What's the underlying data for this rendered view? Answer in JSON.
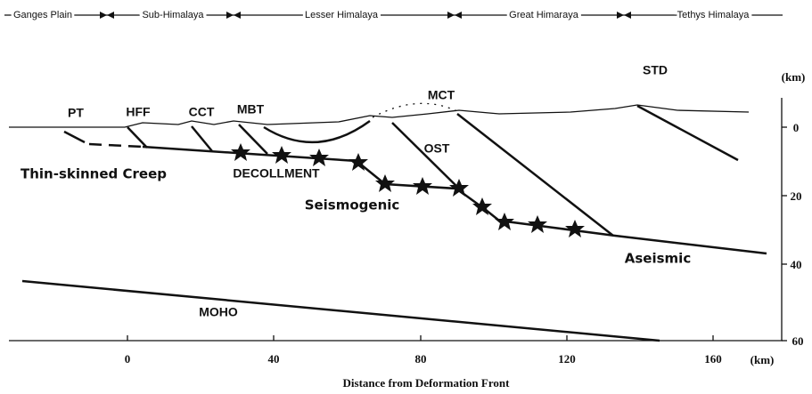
{
  "header": {
    "zones": [
      "Ganges Plain",
      "Sub-Himalaya",
      "Lesser Himalaya",
      "Great Himaraya",
      "Tethys Himalaya"
    ]
  },
  "labels": {
    "pt": "PT",
    "hff": "HFF",
    "cct": "CCT",
    "mbt": "MBT",
    "mct": "MCT",
    "std": "STD",
    "ost": "OST",
    "decollement": "DECOLLMENT",
    "creep": "Thin-skinned Creep",
    "seismogenic": "Seismogenic",
    "aseismic": "Aseismic",
    "moho": "MOHO"
  },
  "axes": {
    "x_ticks": [
      "0",
      "40",
      "80",
      "120",
      "160"
    ],
    "x_unit": "(km)",
    "y_ticks": [
      "0",
      "20",
      "40",
      "60"
    ],
    "y_unit": "(km)",
    "x_title": "Distance from Deformation Front"
  }
}
